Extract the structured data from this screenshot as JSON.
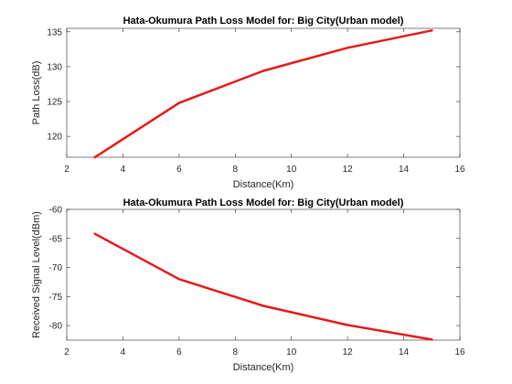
{
  "chart_data": [
    {
      "type": "line",
      "title": "Hata-Okumura Path Loss Model for: Big City(Urban model)",
      "xlabel": "Distance(Km)",
      "ylabel": "Path Loss(dB)",
      "xlim": [
        2,
        16
      ],
      "ylim": [
        117,
        135.5
      ],
      "xticks": [
        2,
        4,
        6,
        8,
        10,
        12,
        14,
        16
      ],
      "yticks": [
        120,
        125,
        130,
        135
      ],
      "grid": false,
      "series": [
        {
          "x": [
            3,
            6,
            9,
            12,
            15
          ],
          "y": [
            117.0,
            124.8,
            129.4,
            132.7,
            135.2
          ],
          "color": "#e31a1a"
        }
      ]
    },
    {
      "type": "line",
      "title": "Hata-Okumura Path Loss Model for: Big City(Urban model)",
      "xlabel": "Distance(Km)",
      "ylabel": "Received Signal Level(dBm)",
      "xlim": [
        2,
        16
      ],
      "ylim": [
        -82.5,
        -60
      ],
      "xticks": [
        2,
        4,
        6,
        8,
        10,
        12,
        14,
        16
      ],
      "yticks": [
        -60,
        -65,
        -70,
        -75,
        -80
      ],
      "grid": false,
      "series": [
        {
          "x": [
            3,
            6,
            9,
            12,
            15
          ],
          "y": [
            -64.2,
            -72.0,
            -76.6,
            -79.9,
            -82.4
          ],
          "color": "#e31a1a"
        }
      ]
    }
  ]
}
